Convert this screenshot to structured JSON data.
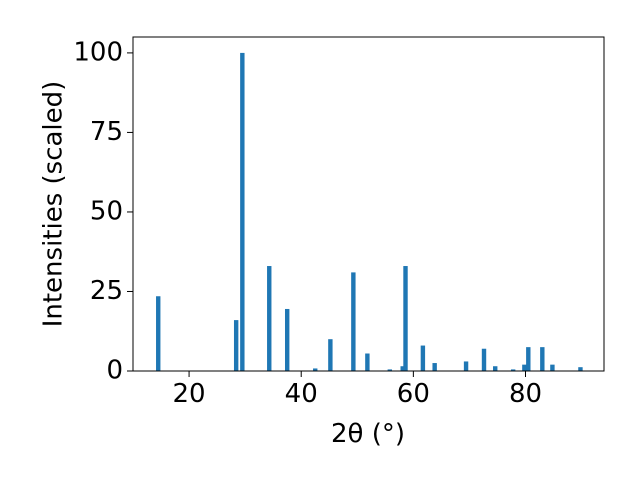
{
  "chart_data": {
    "type": "bar",
    "xlabel": "2θ (°)",
    "ylabel": "Intensities (scaled)",
    "x": [
      14.5,
      28.4,
      29.5,
      34.3,
      37.5,
      42.5,
      45.2,
      49.3,
      51.8,
      55.8,
      58.1,
      58.6,
      61.7,
      63.8,
      69.4,
      72.6,
      74.6,
      77.8,
      79.8,
      80.5,
      83.0,
      84.8,
      89.8
    ],
    "values": [
      23.5,
      16,
      100,
      33,
      19.5,
      0.8,
      10,
      31,
      5.5,
      0.5,
      1.5,
      33,
      8,
      2.5,
      3,
      7,
      1.5,
      0.5,
      2,
      7.5,
      7.5,
      2,
      1.2
    ],
    "color": "#1f77b4",
    "xlim": [
      10,
      94
    ],
    "xticks": [
      20,
      40,
      60,
      80
    ],
    "ylim": [
      0,
      105
    ],
    "yticks": [
      0,
      25,
      50,
      75,
      100
    ]
  }
}
